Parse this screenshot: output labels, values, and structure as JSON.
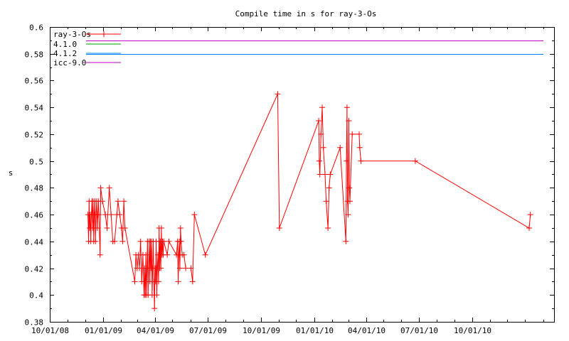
{
  "chart_data": {
    "type": "line",
    "title": "Compile time in s for ray-3-Os",
    "xlabel": "",
    "ylabel": "s",
    "ylim": [
      0.38,
      0.6
    ],
    "xlim": [
      "2008-10-01",
      "2011-02-20"
    ],
    "grid": false,
    "legend_position": "top-left",
    "y_ticks": [
      "0.38",
      "0.4",
      "0.42",
      "0.44",
      "0.46",
      "0.48",
      "0.5",
      "0.52",
      "0.54",
      "0.56",
      "0.58",
      "0.6"
    ],
    "x_ticks": [
      {
        "date": "2008-10-01",
        "label": "10/01/08"
      },
      {
        "date": "2009-01-01",
        "label": "01/01/09"
      },
      {
        "date": "2009-04-01",
        "label": "04/01/09"
      },
      {
        "date": "2009-07-01",
        "label": "07/01/09"
      },
      {
        "date": "2009-10-01",
        "label": "10/01/09"
      },
      {
        "date": "2010-01-01",
        "label": "01/01/10"
      },
      {
        "date": "2010-04-01",
        "label": "04/01/10"
      },
      {
        "date": "2010-07-01",
        "label": "07/01/10"
      },
      {
        "date": "2010-10-01",
        "label": "10/01/10"
      }
    ],
    "series": [
      {
        "name": "ray-3-Os",
        "color": "#ff0000",
        "marker": "plus",
        "points": [
          [
            "2008-12-06",
            0.46
          ],
          [
            "2008-12-07",
            0.44
          ],
          [
            "2008-12-08",
            0.47
          ],
          [
            "2008-12-09",
            0.45
          ],
          [
            "2008-12-10",
            0.46
          ],
          [
            "2008-12-11",
            0.44
          ],
          [
            "2008-12-12",
            0.46
          ],
          [
            "2008-12-13",
            0.47
          ],
          [
            "2008-12-14",
            0.45
          ],
          [
            "2008-12-15",
            0.47
          ],
          [
            "2008-12-16",
            0.44
          ],
          [
            "2008-12-17",
            0.46
          ],
          [
            "2008-12-18",
            0.47
          ],
          [
            "2008-12-19",
            0.44
          ],
          [
            "2008-12-20",
            0.46
          ],
          [
            "2008-12-21",
            0.47
          ],
          [
            "2008-12-22",
            0.45
          ],
          [
            "2008-12-23",
            0.46
          ],
          [
            "2008-12-24",
            0.47
          ],
          [
            "2008-12-25",
            0.46
          ],
          [
            "2008-12-27",
            0.43
          ],
          [
            "2008-12-28",
            0.48
          ],
          [
            "2008-12-31",
            0.47
          ],
          [
            "2009-01-05",
            0.46
          ],
          [
            "2009-01-08",
            0.45
          ],
          [
            "2009-01-12",
            0.48
          ],
          [
            "2009-01-15",
            0.46
          ],
          [
            "2009-01-18",
            0.44
          ],
          [
            "2009-01-21",
            0.44
          ],
          [
            "2009-01-25",
            0.46
          ],
          [
            "2009-01-27",
            0.47
          ],
          [
            "2009-01-30",
            0.46
          ],
          [
            "2009-02-02",
            0.45
          ],
          [
            "2009-02-04",
            0.44
          ],
          [
            "2009-02-06",
            0.47
          ],
          [
            "2009-02-08",
            0.45
          ],
          [
            "2009-02-25",
            0.41
          ],
          [
            "2009-02-27",
            0.43
          ],
          [
            "2009-03-01",
            0.42
          ],
          [
            "2009-03-03",
            0.43
          ],
          [
            "2009-03-05",
            0.42
          ],
          [
            "2009-03-07",
            0.44
          ],
          [
            "2009-03-09",
            0.41
          ],
          [
            "2009-03-11",
            0.43
          ],
          [
            "2009-03-13",
            0.4
          ],
          [
            "2009-03-14",
            0.42
          ],
          [
            "2009-03-15",
            0.4
          ],
          [
            "2009-03-16",
            0.43
          ],
          [
            "2009-03-17",
            0.4
          ],
          [
            "2009-03-18",
            0.42
          ],
          [
            "2009-03-19",
            0.44
          ],
          [
            "2009-03-20",
            0.4
          ],
          [
            "2009-03-21",
            0.42
          ],
          [
            "2009-03-22",
            0.44
          ],
          [
            "2009-03-23",
            0.41
          ],
          [
            "2009-03-24",
            0.44
          ],
          [
            "2009-03-25",
            0.42
          ],
          [
            "2009-03-26",
            0.44
          ],
          [
            "2009-03-27",
            0.4
          ],
          [
            "2009-03-28",
            0.42
          ],
          [
            "2009-03-29",
            0.44
          ],
          [
            "2009-03-30",
            0.41
          ],
          [
            "2009-03-31",
            0.39
          ],
          [
            "2009-04-01",
            0.42
          ],
          [
            "2009-04-02",
            0.41
          ],
          [
            "2009-04-03",
            0.44
          ],
          [
            "2009-04-04",
            0.4
          ],
          [
            "2009-04-05",
            0.42
          ],
          [
            "2009-04-06",
            0.43
          ],
          [
            "2009-04-07",
            0.41
          ],
          [
            "2009-04-08",
            0.45
          ],
          [
            "2009-04-09",
            0.42
          ],
          [
            "2009-04-10",
            0.44
          ],
          [
            "2009-04-11",
            0.42
          ],
          [
            "2009-04-12",
            0.45
          ],
          [
            "2009-04-13",
            0.43
          ],
          [
            "2009-04-14",
            0.44
          ],
          [
            "2009-04-15",
            0.43
          ],
          [
            "2009-04-16",
            0.44
          ],
          [
            "2009-04-22",
            0.43
          ],
          [
            "2009-04-25",
            0.44
          ],
          [
            "2009-05-08",
            0.43
          ],
          [
            "2009-05-10",
            0.44
          ],
          [
            "2009-05-11",
            0.41
          ],
          [
            "2009-05-12",
            0.43
          ],
          [
            "2009-05-13",
            0.44
          ],
          [
            "2009-05-14",
            0.42
          ],
          [
            "2009-05-15",
            0.45
          ],
          [
            "2009-05-16",
            0.44
          ],
          [
            "2009-05-18",
            0.43
          ],
          [
            "2009-05-21",
            0.43
          ],
          [
            "2009-05-24",
            0.42
          ],
          [
            "2009-06-02",
            0.42
          ],
          [
            "2009-06-05",
            0.41
          ],
          [
            "2009-06-08",
            0.46
          ],
          [
            "2009-06-27",
            0.43
          ],
          [
            "2009-10-30",
            0.55
          ],
          [
            "2009-11-02",
            0.45
          ],
          [
            "2010-01-09",
            0.53
          ],
          [
            "2010-01-10",
            0.5
          ],
          [
            "2010-01-11",
            0.49
          ],
          [
            "2010-01-13",
            0.52
          ],
          [
            "2010-01-15",
            0.54
          ],
          [
            "2010-01-17",
            0.51
          ],
          [
            "2010-01-20",
            0.49
          ],
          [
            "2010-01-22",
            0.47
          ],
          [
            "2010-01-25",
            0.45
          ],
          [
            "2010-01-27",
            0.48
          ],
          [
            "2010-01-29",
            0.49
          ],
          [
            "2010-02-15",
            0.51
          ],
          [
            "2010-02-25",
            0.44
          ],
          [
            "2010-02-26",
            0.5
          ],
          [
            "2010-02-27",
            0.54
          ],
          [
            "2010-02-28",
            0.47
          ],
          [
            "2010-03-01",
            0.46
          ],
          [
            "2010-03-02",
            0.53
          ],
          [
            "2010-03-03",
            0.48
          ],
          [
            "2010-03-04",
            0.47
          ],
          [
            "2010-03-08",
            0.52
          ],
          [
            "2010-03-20",
            0.52
          ],
          [
            "2010-03-21",
            0.51
          ],
          [
            "2010-03-23",
            0.5
          ],
          [
            "2010-06-25",
            0.5
          ],
          [
            "2011-01-08",
            0.45
          ],
          [
            "2011-01-10",
            0.46
          ]
        ]
      },
      {
        "name": "4.1.0",
        "color": "#00a000",
        "value": null
      },
      {
        "name": "4.1.2",
        "color": "#0080ff",
        "value": 0.58
      },
      {
        "name": "icc-9.0",
        "color": "#c000c0",
        "value": 0.59
      }
    ]
  }
}
